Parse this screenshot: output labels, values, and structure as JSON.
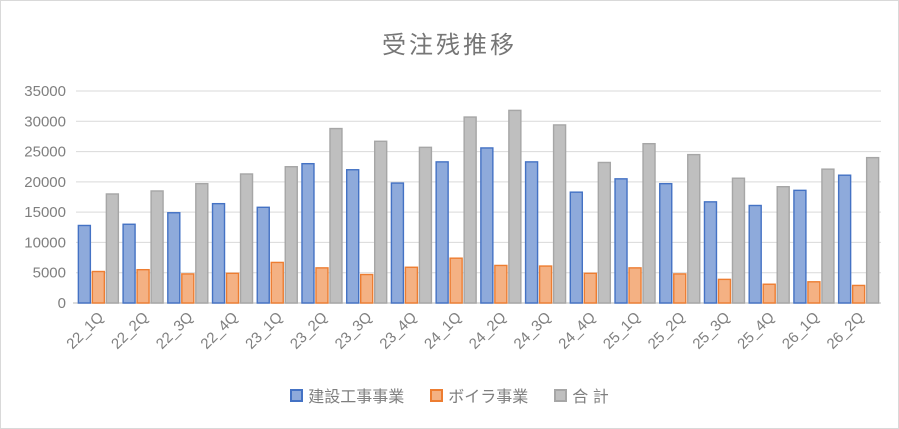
{
  "chart_data": {
    "type": "bar",
    "title": "受注残推移",
    "categories": [
      "22_1Q",
      "22_2Q",
      "22_3Q",
      "22_4Q",
      "23_1Q",
      "23_2Q",
      "23_3Q",
      "23_4Q",
      "24_1Q",
      "24_2Q",
      "24_3Q",
      "24_4Q",
      "25_1Q",
      "25_2Q",
      "25_3Q",
      "25_4Q",
      "26_1Q",
      "26_2Q"
    ],
    "series": [
      {
        "name": "建設工事事業",
        "fill": "#8EAADB",
        "border": "#4472C4",
        "values": [
          12800,
          13000,
          14900,
          16400,
          15800,
          23000,
          22000,
          19800,
          23300,
          25600,
          23300,
          18300,
          20500,
          19700,
          16700,
          16100,
          18600,
          21100
        ]
      },
      {
        "name": "ボイラ事業",
        "fill": "#F4B183",
        "border": "#ED7D31",
        "values": [
          5200,
          5500,
          4800,
          4900,
          6700,
          5800,
          4700,
          5900,
          7400,
          6200,
          6100,
          4900,
          5800,
          4800,
          3900,
          3100,
          3500,
          2900
        ]
      },
      {
        "name": "合 計",
        "fill": "#BFBFBF",
        "border": "#A6A6A6",
        "values": [
          18000,
          18500,
          19700,
          21300,
          22500,
          28800,
          26700,
          25700,
          30700,
          31800,
          29400,
          23200,
          26300,
          24500,
          20600,
          19200,
          22100,
          24000
        ]
      }
    ],
    "xlabel": "",
    "ylabel": "",
    "ylim": [
      0,
      35000
    ],
    "yticks": [
      0,
      5000,
      10000,
      15000,
      20000,
      25000,
      30000,
      35000
    ],
    "grid": true,
    "legend_position": "bottom",
    "colors": {
      "title_text": "#767676",
      "axis_text": "#7F7F7F",
      "gridline": "#D9D9D9",
      "axis_line": "#D0D0D0",
      "background": "#FFFFFF"
    }
  }
}
